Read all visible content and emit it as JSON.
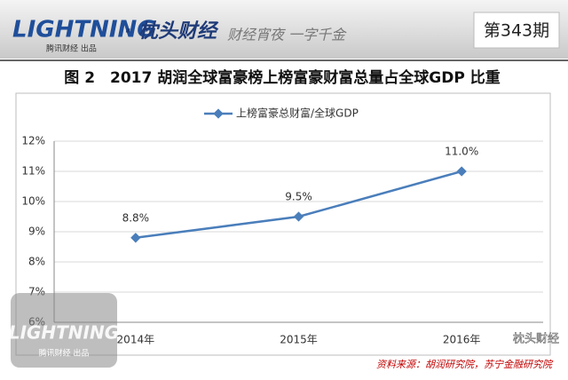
{
  "header": {
    "logo": "LIGHTNING",
    "logo_sub": "腾讯财经 出品",
    "brand": "· 枕头财经",
    "tagline": "财经宵夜 一字千金",
    "issue": "第343期"
  },
  "chart_data": {
    "type": "line",
    "title": "图 2　2017 胡润全球富豪榜上榜富豪财富总量占全球GDP 比重",
    "categories": [
      "2014年",
      "2015年",
      "2016年"
    ],
    "series": [
      {
        "name": "上榜富豪总财富/全球GDP",
        "color": "#4a7ebb",
        "values": [
          8.8,
          9.5,
          11.0
        ],
        "value_labels": [
          "8.8%",
          "9.5%",
          "11.0%"
        ]
      }
    ],
    "ylim": [
      6,
      12
    ],
    "yticks": [
      {
        "value": 6,
        "label": "6%"
      },
      {
        "value": 7,
        "label": "7%"
      },
      {
        "value": 8,
        "label": "8%"
      },
      {
        "value": 9,
        "label": "9%"
      },
      {
        "value": 10,
        "label": "10%"
      },
      {
        "value": 11,
        "label": "11%"
      },
      {
        "value": 12,
        "label": "12%"
      }
    ],
    "grid": true,
    "legend": "top",
    "source": "资料来源：胡润研究院，苏宁金融研究院"
  },
  "watermark": {
    "text": "枕头财经"
  }
}
